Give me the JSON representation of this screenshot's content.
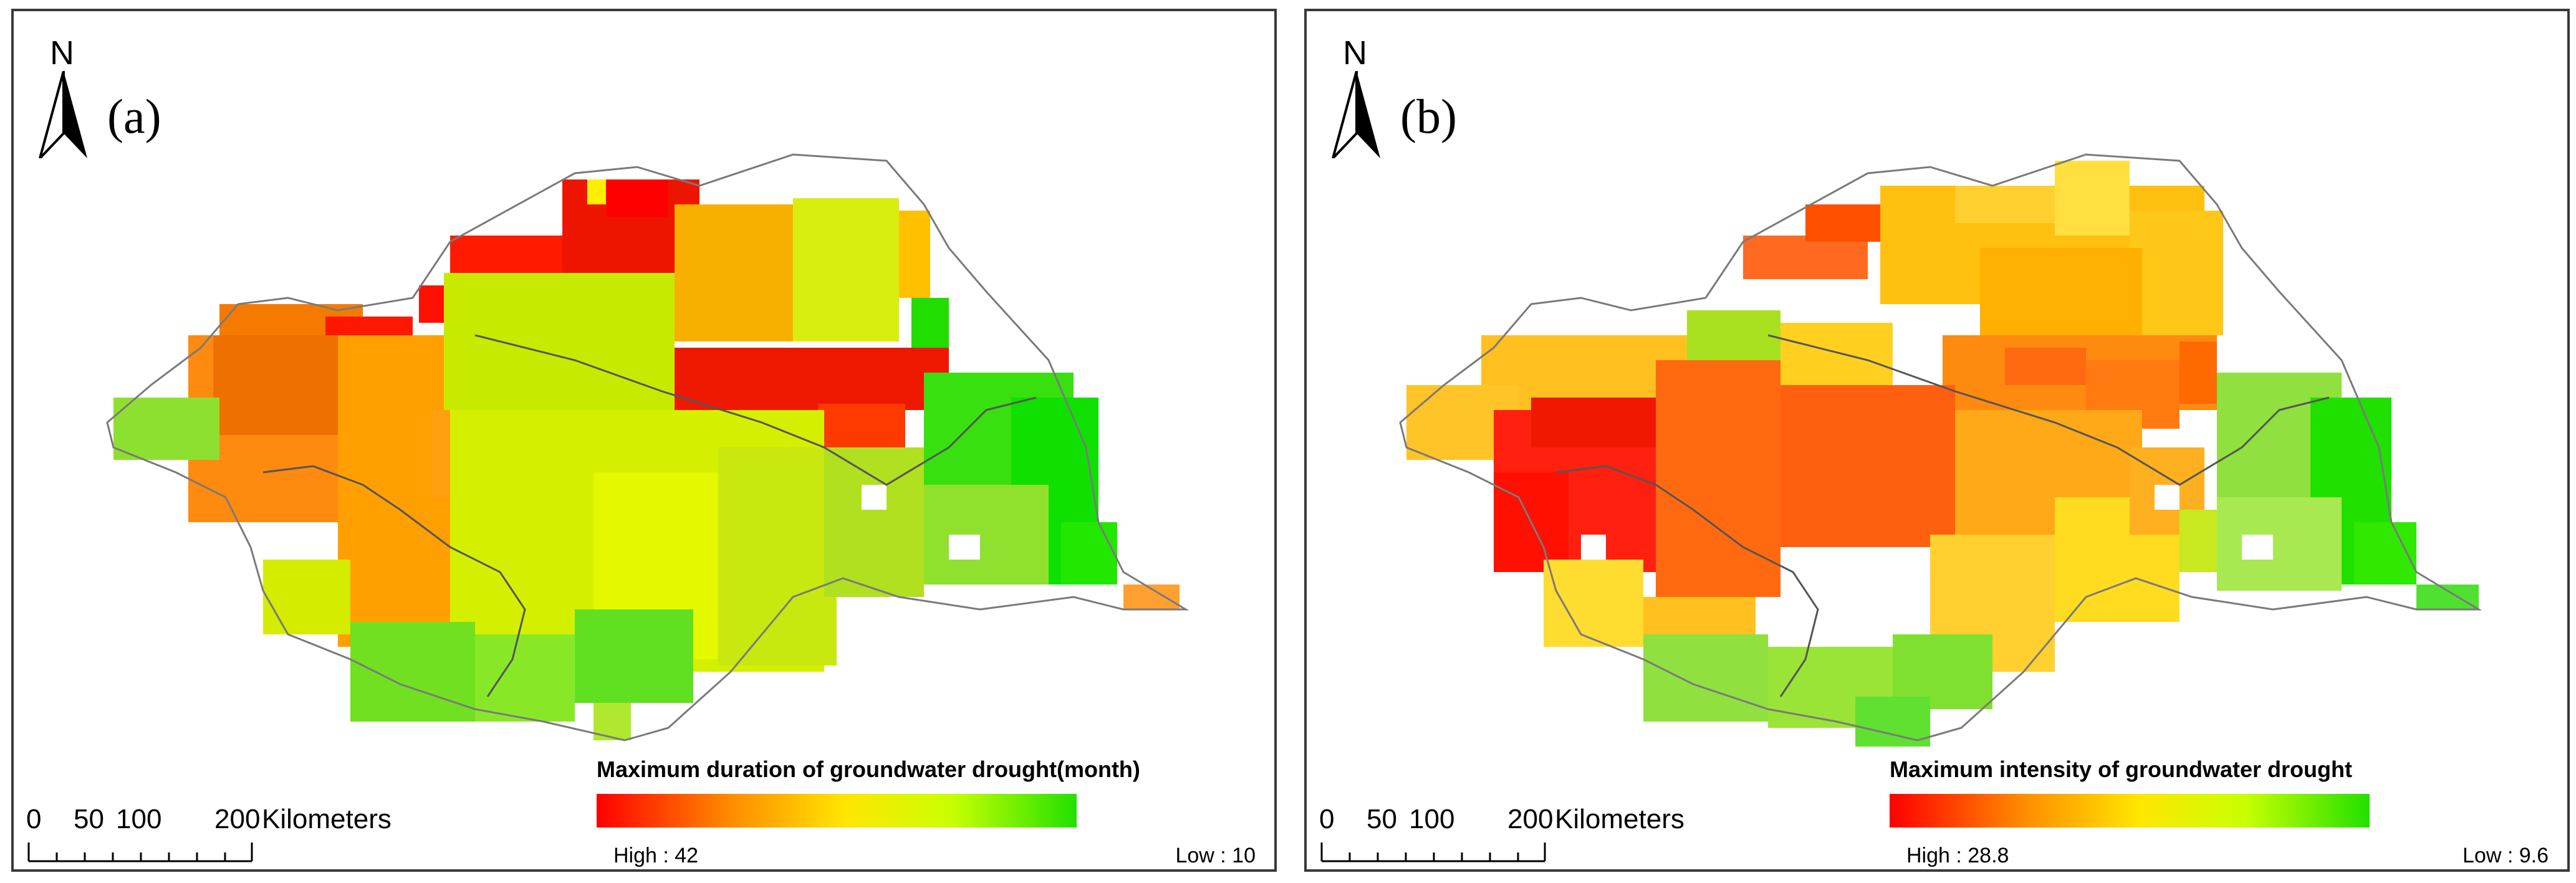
{
  "colors": {
    "ramp_high": "#ff0000",
    "ramp_mid_orange": "#ff8c00",
    "ramp_mid_yellow": "#ffe600",
    "ramp_low": "#22e000",
    "frame": "#3a3a3a",
    "boundary": "#7a7a7a"
  },
  "panels": [
    {
      "north_label": "N",
      "label": "(a)",
      "scale": {
        "ticks": [
          "0",
          "50",
          "100",
          "200"
        ],
        "unit": "Kilometers"
      },
      "legend": {
        "title": "Maximum duration of groundwater drought(month)",
        "high_label": "High : 42",
        "low_label": "Low : 10"
      },
      "legend_range": {
        "high": 42,
        "low": 10
      }
    },
    {
      "north_label": "N",
      "label": "(b)",
      "scale": {
        "ticks": [
          "0",
          "50",
          "100",
          "200"
        ],
        "unit": "Kilometers"
      },
      "legend": {
        "title": "Maximum intensity of groundwater drought",
        "high_label": "High : 28.8",
        "low_label": "Low : 9.6"
      },
      "legend_range": {
        "high": 28.8,
        "low": 9.6
      }
    }
  ]
}
